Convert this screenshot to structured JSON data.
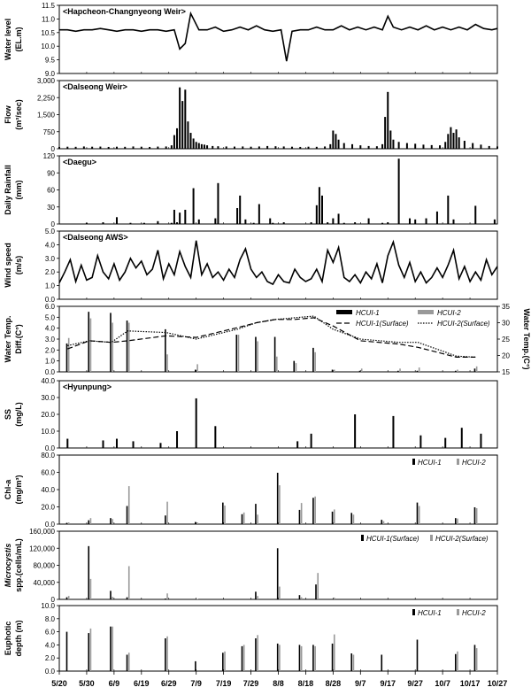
{
  "x_axis": {
    "ticks": [
      "5/20",
      "5/30",
      "6/9",
      "6/19",
      "6/29",
      "7/9",
      "7/19",
      "7/29",
      "8/8",
      "8/18",
      "8/28",
      "9/7",
      "9/17",
      "9/27",
      "10/7",
      "10/17",
      "10/27"
    ]
  },
  "chart_data": [
    {
      "type": "line",
      "title": "<Hapcheon-Changnyeong Weir>",
      "ylabel": "Water level",
      "ylabel2": "(EL.m)",
      "ylim": [
        9.0,
        11.5
      ],
      "yticks": [
        "9.0",
        "9.5",
        "10.0",
        "10.5",
        "11.0",
        "11.5"
      ],
      "x": [
        "5/20",
        "5/23",
        "5/26",
        "5/29",
        "6/1",
        "6/4",
        "6/7",
        "6/10",
        "6/13",
        "6/16",
        "6/19",
        "6/22",
        "6/25",
        "6/28",
        "7/1",
        "7/3",
        "7/5",
        "7/7",
        "7/10",
        "7/13",
        "7/16",
        "7/19",
        "7/22",
        "7/25",
        "7/28",
        "7/31",
        "8/3",
        "8/6",
        "8/9",
        "8/11",
        "8/13",
        "8/16",
        "8/19",
        "8/22",
        "8/25",
        "8/28",
        "8/31",
        "9/3",
        "9/6",
        "9/9",
        "9/12",
        "9/15",
        "9/17",
        "9/19",
        "9/22",
        "9/25",
        "9/28",
        "10/1",
        "10/4",
        "10/7",
        "10/10",
        "10/13",
        "10/16",
        "10/19",
        "10/22",
        "10/25",
        "10/27"
      ],
      "values": [
        10.6,
        10.6,
        10.55,
        10.6,
        10.6,
        10.65,
        10.6,
        10.55,
        10.6,
        10.6,
        10.55,
        10.6,
        10.6,
        10.55,
        10.6,
        9.9,
        10.1,
        11.2,
        10.6,
        10.6,
        10.7,
        10.55,
        10.6,
        10.7,
        10.6,
        10.75,
        10.6,
        10.55,
        10.6,
        9.45,
        10.55,
        10.6,
        10.6,
        10.7,
        10.6,
        10.6,
        10.75,
        10.6,
        10.7,
        10.6,
        10.7,
        10.6,
        11.1,
        10.7,
        10.6,
        10.7,
        10.6,
        10.75,
        10.6,
        10.7,
        10.6,
        10.7,
        10.6,
        10.8,
        10.65,
        10.6,
        10.65
      ]
    },
    {
      "type": "bar",
      "title": "<Dalseong Weir>",
      "ylabel": "Flow",
      "ylabel2": "(m³/sec)",
      "ylim": [
        0,
        3000
      ],
      "yticks": [
        "0",
        "750",
        "1,500",
        "2,250",
        "3,000"
      ],
      "x": [
        "5/20",
        "5/23",
        "5/26",
        "5/29",
        "6/1",
        "6/4",
        "6/7",
        "6/10",
        "6/13",
        "6/16",
        "6/19",
        "6/22",
        "6/25",
        "6/28",
        "6/30",
        "7/1",
        "7/2",
        "7/3",
        "7/4",
        "7/5",
        "7/6",
        "7/7",
        "7/8",
        "7/9",
        "7/10",
        "7/11",
        "7/12",
        "7/13",
        "7/15",
        "7/17",
        "7/20",
        "7/23",
        "7/26",
        "7/29",
        "8/1",
        "8/4",
        "8/7",
        "8/10",
        "8/13",
        "8/16",
        "8/19",
        "8/22",
        "8/25",
        "8/27",
        "8/28",
        "8/29",
        "8/30",
        "9/1",
        "9/4",
        "9/7",
        "9/10",
        "9/13",
        "9/15",
        "9/16",
        "9/17",
        "9/18",
        "9/19",
        "9/21",
        "9/24",
        "9/27",
        "9/30",
        "10/3",
        "10/6",
        "10/8",
        "10/9",
        "10/10",
        "10/11",
        "10/12",
        "10/13",
        "10/15",
        "10/18",
        "10/21",
        "10/24",
        "10/27"
      ],
      "values": [
        80,
        90,
        85,
        100,
        90,
        95,
        80,
        90,
        85,
        100,
        90,
        80,
        95,
        100,
        150,
        600,
        900,
        2700,
        2100,
        2600,
        1200,
        700,
        450,
        300,
        250,
        200,
        180,
        150,
        120,
        110,
        100,
        95,
        100,
        90,
        100,
        120,
        110,
        100,
        90,
        80,
        90,
        85,
        100,
        200,
        800,
        650,
        400,
        250,
        200,
        150,
        120,
        110,
        200,
        1400,
        2500,
        800,
        400,
        300,
        250,
        220,
        180,
        160,
        150,
        300,
        650,
        950,
        700,
        850,
        500,
        350,
        250,
        180,
        120,
        100
      ]
    },
    {
      "type": "bar",
      "title": "<Daegu>",
      "ylabel": "Daily Rainfall",
      "ylabel2": "(mm)",
      "ylim": [
        0,
        120
      ],
      "yticks": [
        "0",
        "30",
        "60",
        "90",
        "120"
      ],
      "x": [
        "5/30",
        "6/5",
        "6/10",
        "6/15",
        "6/20",
        "6/25",
        "6/30",
        "7/1",
        "7/2",
        "7/3",
        "7/5",
        "7/8",
        "7/10",
        "7/16",
        "7/17",
        "7/24",
        "7/25",
        "7/27",
        "7/30",
        "8/1",
        "8/5",
        "8/6",
        "8/10",
        "8/20",
        "8/22",
        "8/23",
        "8/24",
        "8/26",
        "8/28",
        "8/30",
        "9/1",
        "9/5",
        "9/10",
        "9/15",
        "9/17",
        "9/21",
        "9/25",
        "9/27",
        "10/1",
        "10/5",
        "10/9",
        "10/11",
        "10/19",
        "10/26"
      ],
      "values": [
        2,
        3,
        12,
        2,
        2,
        5,
        2,
        25,
        3,
        20,
        25,
        63,
        8,
        10,
        72,
        28,
        50,
        8,
        2,
        35,
        10,
        2,
        3,
        3,
        33,
        65,
        50,
        3,
        10,
        18,
        2,
        3,
        10,
        2,
        3,
        115,
        10,
        8,
        10,
        22,
        50,
        8,
        32,
        8
      ]
    },
    {
      "type": "line",
      "title": "<Dalseong AWS>",
      "ylabel": "Wind speed",
      "ylabel2": "(m/s)",
      "ylim": [
        0.0,
        5.0
      ],
      "yticks": [
        "0.0",
        "1.0",
        "2.0",
        "3.0",
        "4.0",
        "5.0"
      ],
      "x": [
        "5/20",
        "5/22",
        "5/24",
        "5/26",
        "5/28",
        "5/30",
        "6/1",
        "6/3",
        "6/5",
        "6/7",
        "6/9",
        "6/11",
        "6/13",
        "6/15",
        "6/17",
        "6/19",
        "6/21",
        "6/23",
        "6/25",
        "6/27",
        "6/29",
        "7/1",
        "7/3",
        "7/5",
        "7/7",
        "7/9",
        "7/11",
        "7/13",
        "7/15",
        "7/17",
        "7/19",
        "7/21",
        "7/23",
        "7/25",
        "7/27",
        "7/29",
        "7/31",
        "8/2",
        "8/4",
        "8/6",
        "8/8",
        "8/10",
        "8/12",
        "8/14",
        "8/16",
        "8/18",
        "8/20",
        "8/22",
        "8/24",
        "8/26",
        "8/28",
        "8/30",
        "9/1",
        "9/3",
        "9/5",
        "9/7",
        "9/9",
        "9/11",
        "9/13",
        "9/15",
        "9/17",
        "9/19",
        "9/21",
        "9/23",
        "9/25",
        "9/27",
        "9/29",
        "10/1",
        "10/3",
        "10/5",
        "10/7",
        "10/9",
        "10/11",
        "10/13",
        "10/15",
        "10/17",
        "10/19",
        "10/21",
        "10/23",
        "10/25",
        "10/27"
      ],
      "values": [
        1.2,
        2.0,
        2.9,
        1.3,
        2.5,
        1.4,
        1.6,
        3.2,
        2.0,
        1.5,
        2.6,
        1.4,
        2.0,
        3.0,
        2.3,
        2.8,
        1.8,
        2.2,
        3.6,
        1.5,
        2.6,
        1.8,
        3.5,
        2.4,
        1.6,
        4.3,
        1.8,
        2.6,
        1.6,
        2.0,
        1.4,
        2.2,
        1.6,
        2.9,
        3.7,
        2.2,
        1.6,
        2.0,
        1.3,
        1.1,
        1.8,
        1.3,
        1.2,
        2.2,
        1.6,
        1.3,
        1.5,
        2.2,
        1.3,
        3.6,
        2.7,
        3.8,
        1.6,
        1.3,
        1.8,
        1.2,
        2.0,
        1.5,
        2.6,
        1.2,
        3.2,
        4.2,
        2.5,
        1.6,
        2.7,
        1.3,
        2.0,
        1.2,
        1.6,
        2.3,
        1.6,
        2.5,
        3.6,
        1.5,
        2.4,
        1.3,
        2.0,
        1.4,
        2.9,
        1.8,
        2.4
      ]
    },
    {
      "type": "bar+line",
      "ylabel": "Water Temp.",
      "ylabel2": "Diff.(C°)",
      "ylim": [
        0.0,
        6.0
      ],
      "yticks": [
        "0.0",
        "1.0",
        "2.0",
        "3.0",
        "4.0",
        "5.0",
        "6.0"
      ],
      "y2label": "Water Temp.(C°)",
      "y2lim": [
        15,
        35
      ],
      "y2ticks": [
        "15",
        "20",
        "25",
        "30",
        "35"
      ],
      "legend_position": "top-right",
      "legend": [
        "HCUI-1",
        "HCUI-2",
        "HCUI-1(Surface)",
        "HCUI-2(Surface)"
      ],
      "x": [
        "5/23",
        "5/31",
        "6/8",
        "6/14",
        "6/28",
        "7/9",
        "7/24",
        "7/31",
        "8/7",
        "8/14",
        "8/21",
        "8/28",
        "9/7",
        "9/21",
        "9/28",
        "10/12",
        "10/19"
      ],
      "series": [
        {
          "name": "HCUI-1",
          "values": [
            2.6,
            5.5,
            5.4,
            4.7,
            3.9,
            0.2,
            3.4,
            3.2,
            3.2,
            1.0,
            2.2,
            0.2,
            0.1,
            0.1,
            0.1,
            0.1,
            0.3
          ]
        },
        {
          "name": "HCUI-2",
          "values": [
            3.1,
            4.9,
            4.5,
            4.5,
            1.6,
            0.7,
            3.4,
            2.8,
            1.4,
            0.8,
            1.8,
            0.2,
            0.3,
            0.3,
            0.4,
            0.2,
            0.5
          ]
        }
      ],
      "lines": [
        {
          "name": "HCUI-1(Surface)",
          "x": [
            "5/23",
            "5/31",
            "6/8",
            "6/14",
            "6/28",
            "7/9",
            "7/24",
            "7/31",
            "8/7",
            "8/14",
            "8/21",
            "8/28",
            "9/7",
            "9/21",
            "9/28",
            "10/12",
            "10/19"
          ],
          "values": [
            22,
            24.5,
            24,
            24.5,
            26,
            25.5,
            28.5,
            30,
            31,
            31,
            31.5,
            29,
            24.5,
            23.5,
            22.5,
            19.5,
            19.5
          ]
        },
        {
          "name": "HCUI-2(Surface)",
          "x": [
            "5/23",
            "5/31",
            "6/8",
            "6/14",
            "6/28",
            "7/9",
            "7/24",
            "7/31",
            "8/7",
            "8/14",
            "8/21",
            "8/28",
            "9/7",
            "9/21",
            "9/28",
            "10/12",
            "10/19"
          ],
          "values": [
            23,
            24.5,
            24,
            27.5,
            27,
            25,
            28,
            30,
            31,
            31.5,
            32,
            28,
            25,
            24,
            24,
            19.8,
            19.5
          ]
        }
      ]
    },
    {
      "type": "bar",
      "title": "<Hyunpung>",
      "ylabel": "SS",
      "ylabel2": "(mg/L)",
      "ylim": [
        0.0,
        40.0
      ],
      "yticks": [
        "0.0",
        "10.0",
        "20.0",
        "30.0",
        "40.0"
      ],
      "x": [
        "5/23",
        "6/5",
        "6/10",
        "6/16",
        "6/26",
        "7/2",
        "7/9",
        "7/16",
        "8/15",
        "8/20",
        "9/5",
        "9/19",
        "9/29",
        "10/8",
        "10/14",
        "10/21"
      ],
      "values": [
        5.5,
        4.5,
        5.5,
        4.0,
        3.0,
        10.0,
        29.5,
        13.0,
        4.0,
        8.5,
        20.0,
        19.0,
        7.5,
        6.0,
        12.0,
        8.5
      ]
    },
    {
      "type": "bar",
      "ylabel": "Chl-a",
      "ylabel2": "(mg/m³)",
      "ylim": [
        0.0,
        80.0
      ],
      "yticks": [
        "0.0",
        "20.0",
        "40.0",
        "60.0",
        "80.0"
      ],
      "legend_position": "top-right",
      "legend": [
        "HCUI-1",
        "HCUI-2"
      ],
      "x": [
        "5/23",
        "5/31",
        "6/8",
        "6/14",
        "6/28",
        "7/9",
        "7/19",
        "7/26",
        "7/31",
        "8/8",
        "8/16",
        "8/21",
        "8/28",
        "9/4",
        "9/15",
        "9/28",
        "10/12",
        "10/19"
      ],
      "series": [
        {
          "name": "HCUI-1",
          "values": [
            1.5,
            4.5,
            7.0,
            21.0,
            10.0,
            2.5,
            25.0,
            11.5,
            23.5,
            59.5,
            16.5,
            30.5,
            14.5,
            13.0,
            5.0,
            25.0,
            7.0,
            19.5
          ]
        },
        {
          "name": "HCUI-2",
          "values": [
            2.0,
            7.0,
            6.0,
            44.0,
            26.0,
            2.0,
            21.5,
            13.5,
            11.0,
            45.0,
            24.5,
            32.0,
            17.0,
            11.0,
            3.5,
            21.0,
            6.5,
            18.5
          ]
        }
      ]
    },
    {
      "type": "bar",
      "ylabel": "Microcystis",
      "ylabel2": "spp.(cells/mL)",
      "ylim": [
        0,
        160000
      ],
      "yticks": [
        "0",
        "40,000",
        "80,000",
        "120,000",
        "160,000"
      ],
      "legend_position": "top-right",
      "legend": [
        "HCUI-1(Surface)",
        "HCUI-2(Surface)"
      ],
      "x": [
        "5/23",
        "5/31",
        "6/8",
        "6/14",
        "6/28",
        "7/9",
        "7/31",
        "8/8",
        "8/16",
        "8/22",
        "8/28"
      ],
      "series": [
        {
          "name": "HCUI-1(Surface)",
          "values": [
            5000,
            125000,
            20000,
            5000,
            2000,
            1000,
            18000,
            120000,
            10000,
            35000,
            1000
          ]
        },
        {
          "name": "HCUI-2(Surface)",
          "values": [
            8000,
            48000,
            6000,
            78000,
            14000,
            1000,
            8000,
            30000,
            5000,
            62000,
            4000
          ]
        }
      ]
    },
    {
      "type": "bar",
      "ylabel": "Euphotic",
      "ylabel2": "depth  (m)",
      "ylim": [
        0.0,
        10.0
      ],
      "yticks": [
        "0.0",
        "2.0",
        "4.0",
        "6.0",
        "8.0",
        "10.0"
      ],
      "legend_position": "top-right",
      "legend": [
        "HCUI-1",
        "HCUI-2"
      ],
      "x": [
        "5/23",
        "5/31",
        "6/8",
        "6/14",
        "6/28",
        "7/9",
        "7/19",
        "7/26",
        "7/31",
        "8/8",
        "8/16",
        "8/21",
        "8/28",
        "9/4",
        "9/15",
        "9/28",
        "10/12",
        "10/19"
      ],
      "series": [
        {
          "name": "HCUI-1",
          "values": [
            6.0,
            5.8,
            6.8,
            2.5,
            5.0,
            1.5,
            2.8,
            3.8,
            5.0,
            4.2,
            4.0,
            4.0,
            4.2,
            2.7,
            2.5,
            4.8,
            2.6,
            4.0
          ]
        },
        {
          "name": "HCUI-2",
          "values": [
            0,
            6.5,
            6.8,
            2.8,
            5.3,
            0,
            3.0,
            4.0,
            5.5,
            4.0,
            3.8,
            3.8,
            5.6,
            2.5,
            0,
            0,
            3.0,
            3.5
          ]
        }
      ]
    }
  ]
}
